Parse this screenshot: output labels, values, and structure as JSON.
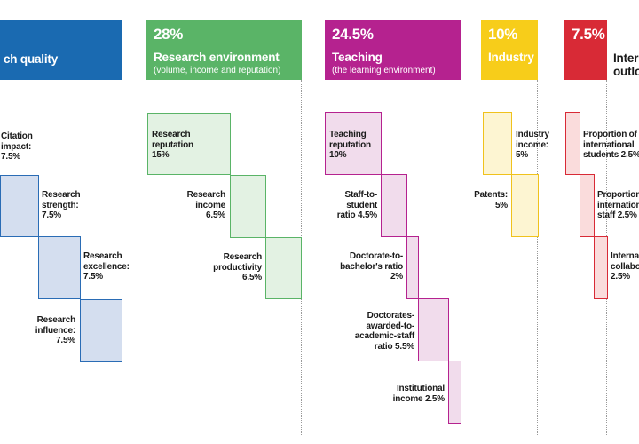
{
  "colors": {
    "research_quality": "#1a6ab1",
    "research_environment": "#5ab467",
    "teaching": "#b5228f",
    "industry": "#f7cd1a",
    "international": "#d82a36"
  },
  "pillars": {
    "research_quality": {
      "pct": "",
      "title": "ch quality",
      "subtitle": ""
    },
    "research_environment": {
      "pct": "28%",
      "title": "Research environment",
      "subtitle": "(volume, income and reputation)"
    },
    "teaching": {
      "pct": "24.5%",
      "title": "Teaching",
      "subtitle": "(the learning environment)"
    },
    "industry": {
      "pct": "10%",
      "title": "Industry",
      "subtitle": ""
    },
    "international": {
      "pct": "7.5%",
      "title": "Inter",
      "title2": "outlo",
      "subtitle": ""
    }
  },
  "metrics": {
    "research_quality": [
      {
        "lines": [
          "Citation",
          "impact:",
          "7.5%"
        ],
        "share": 7.5
      },
      {
        "lines": [
          "Research",
          "strength:",
          "7.5%"
        ],
        "share": 7.5
      },
      {
        "lines": [
          "Research",
          "excellence:",
          "7.5%"
        ],
        "share": 7.5
      },
      {
        "lines": [
          "Research",
          "influence:",
          "7.5%"
        ],
        "share": 7.5
      }
    ],
    "research_environment": [
      {
        "lines": [
          "Research",
          "reputation",
          "15%"
        ],
        "share": 15
      },
      {
        "lines": [
          "Research",
          "income",
          "6.5%"
        ],
        "share": 6.5
      },
      {
        "lines": [
          "Research",
          "productivity",
          "6.5%"
        ],
        "share": 6.5
      }
    ],
    "teaching": [
      {
        "lines": [
          "Teaching",
          "reputation",
          "10%"
        ],
        "share": 10
      },
      {
        "lines": [
          "Staff-to-",
          "student",
          "ratio 4.5%"
        ],
        "share": 4.5
      },
      {
        "lines": [
          "Doctorate-to-",
          "bachelor's ratio",
          "2%"
        ],
        "share": 2
      },
      {
        "lines": [
          "Doctorates-",
          "awarded-to-",
          "academic-staff",
          "ratio 5.5%"
        ],
        "share": 5.5
      },
      {
        "lines": [
          "Institutional",
          "income 2.5%"
        ],
        "share": 2.5
      }
    ],
    "industry": [
      {
        "lines": [
          "Industry",
          "income:",
          "5%"
        ],
        "share": 5
      },
      {
        "lines": [
          "Patents:",
          "5%"
        ],
        "share": 5
      }
    ],
    "international": [
      {
        "lines": [
          "Proportion of",
          "international",
          "students 2.5%"
        ],
        "share": 2.5
      },
      {
        "lines": [
          "Proportion",
          "internation",
          "staff 2.5%"
        ],
        "share": 2.5
      },
      {
        "lines": [
          "Interna",
          "collabo",
          "2.5%"
        ],
        "share": 2.5
      }
    ]
  }
}
